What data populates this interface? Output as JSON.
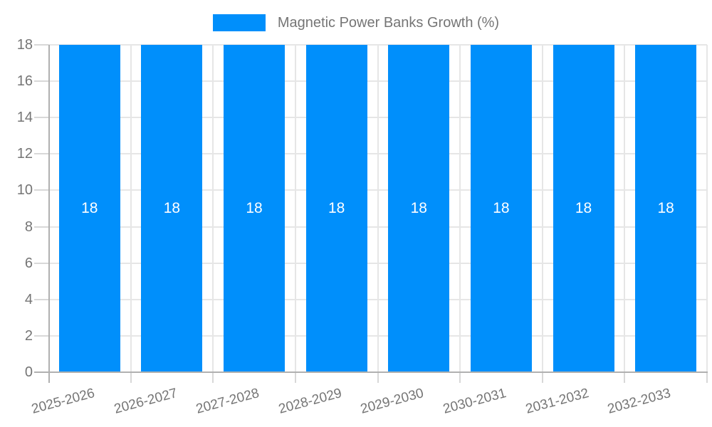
{
  "legend": {
    "label": "Magnetic Power Banks Growth (%)",
    "marker_color": "#008FFB"
  },
  "chart_data": {
    "type": "bar",
    "title": "",
    "xlabel": "",
    "ylabel": "",
    "categories": [
      "2025-2026",
      "2026-2027",
      "2027-2028",
      "2028-2029",
      "2029-2030",
      "2030-2031",
      "2031-2032",
      "2032-2033"
    ],
    "series": [
      {
        "name": "Magnetic Power Banks Growth (%)",
        "color": "#008FFB",
        "values": [
          18,
          18,
          18,
          18,
          18,
          18,
          18,
          18
        ]
      }
    ],
    "bar_value_labels": [
      "18",
      "18",
      "18",
      "18",
      "18",
      "18",
      "18",
      "18"
    ],
    "ylim": [
      0,
      18
    ],
    "yticks": [
      0,
      2,
      4,
      6,
      8,
      10,
      12,
      14,
      16,
      18
    ],
    "grid": true,
    "legend_position": "top",
    "x_label_rotation_deg": -15
  },
  "colors": {
    "bar": "#008FFB",
    "grid": "#e6e6e6",
    "axis": "#b0b0b0",
    "tick": "#d8d8d8",
    "text": "#757575",
    "value_label": "#ffffff",
    "background": "#ffffff"
  }
}
